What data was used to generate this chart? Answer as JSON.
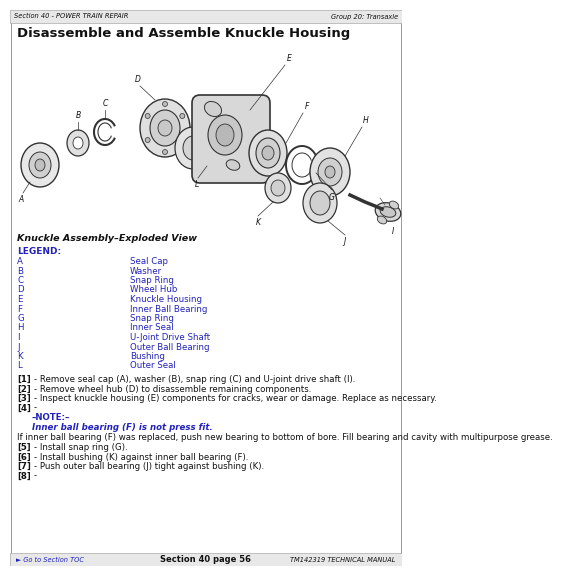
{
  "header_left": "Section 40 - POWER TRAIN REPAIR",
  "header_right": "Group 20: Transaxle",
  "title": "Disassemble and Assemble Knuckle Housing",
  "section_label": "Knuckle Assembly–Exploded View",
  "legend_title": "LEGEND:",
  "legend_items": [
    [
      "A",
      "Seal Cap"
    ],
    [
      "B",
      "Washer"
    ],
    [
      "C",
      "Snap Ring"
    ],
    [
      "D",
      "Wheel Hub"
    ],
    [
      "E",
      "Knuckle Housing"
    ],
    [
      "F",
      "Inner Ball Bearing"
    ],
    [
      "G",
      "Snap Ring"
    ],
    [
      "H",
      "Inner Seal"
    ],
    [
      "I",
      "U-Joint Drive Shaft"
    ],
    [
      "J",
      "Outer Ball Bearing"
    ],
    [
      "K",
      "Bushing"
    ],
    [
      "L",
      "Outer Seal"
    ]
  ],
  "step1": "[1] - Remove seal cap (A), washer (B), snap ring (C) and U-joint drive shaft (I).",
  "step2": "[2] - Remove wheel hub (D) to disassemble remaining components.",
  "step3": "[3] - Inspect knuckle housing (E) components for cracks, wear or damage. Replace as necessary.",
  "step4": "[4] -",
  "note_label": "–NOTE:–",
  "note_text": "Inner ball bearing (F) is not press fit.",
  "para": "If inner ball bearing (F) was replaced, push new bearing to bottom of bore. Fill bearing and cavity with multipurpose grease.",
  "step5": "[5] - Install snap ring (G).",
  "step6": "[6] - Install bushing (K) against inner ball bearing (F).",
  "step7": "[7] - Push outer ball bearing (J) tight against bushing (K).",
  "step8": "[8] -",
  "footer_left": "► Go to Section TOC",
  "footer_center": "Section 40 page 56",
  "footer_right": "TM142319 TECHNICAL MANUAL",
  "bg_color": "#ffffff",
  "header_bg": "#e8e8e8",
  "text_blue": "#2222bb",
  "text_black": "#111111",
  "border_color": "#999999",
  "diagram_bg": "#ffffff",
  "part_color": "#cccccc",
  "line_color": "#333333"
}
